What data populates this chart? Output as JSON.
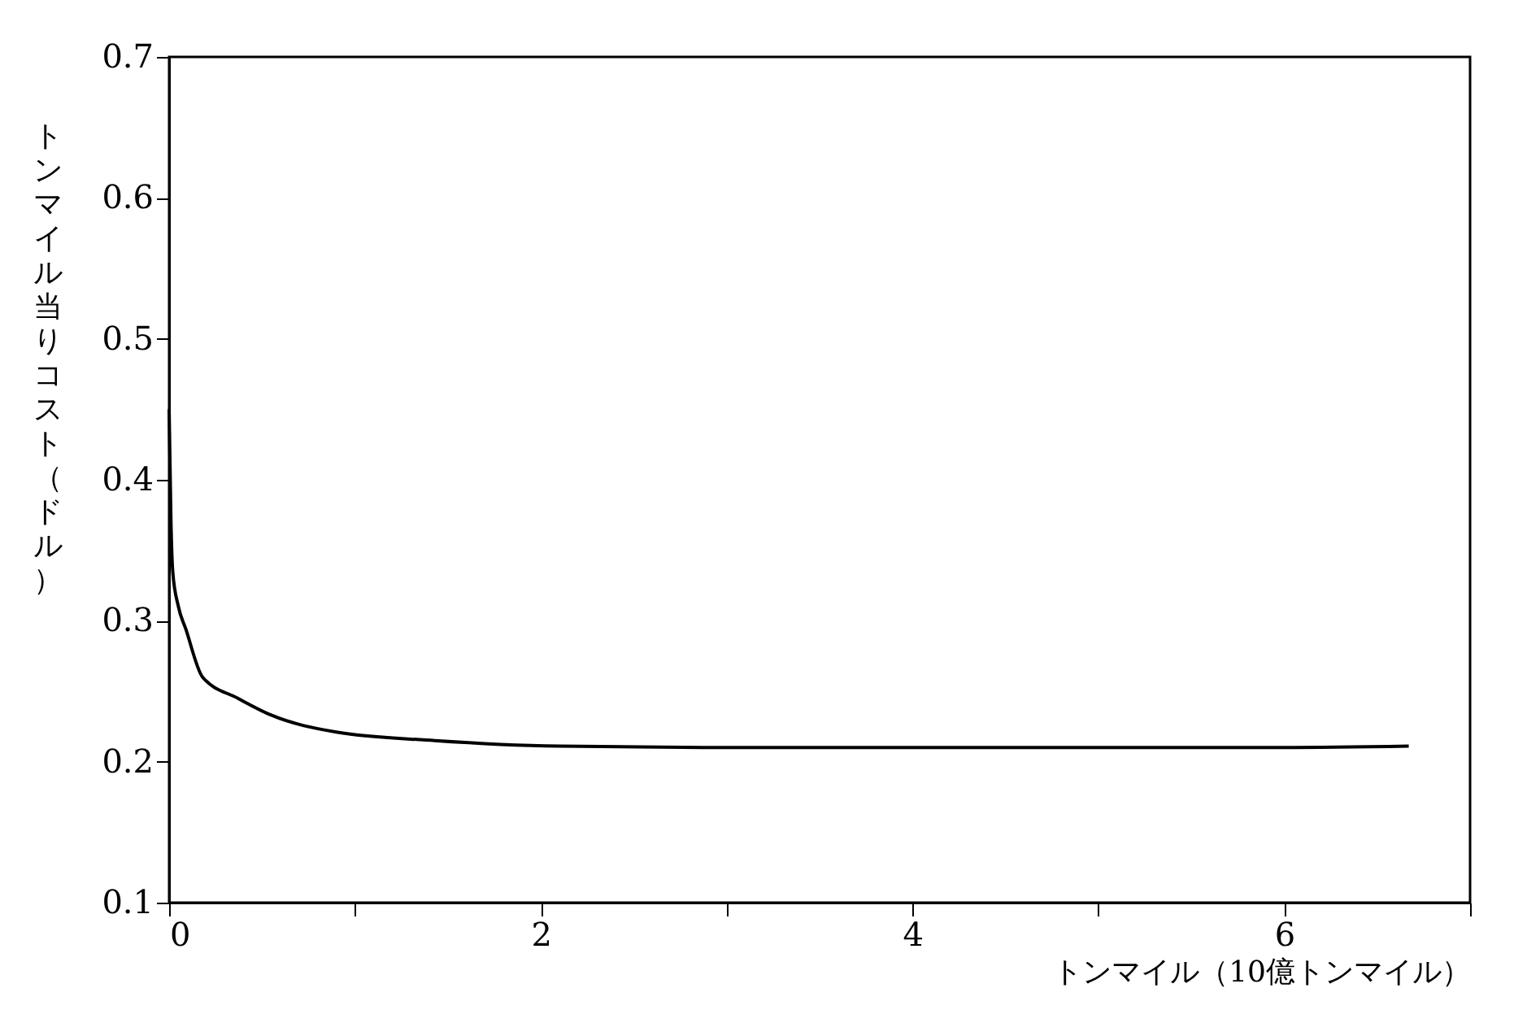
{
  "chart_data": {
    "type": "line",
    "xlabel": "トンマイル（10億トンマイル）",
    "ylabel": "トンマイル当りコスト（ドル）",
    "series": [
      {
        "color": "#000000",
        "x": [
          0,
          0.01,
          0.02,
          0.05,
          0.09,
          0.18,
          0.37,
          0.55,
          0.9,
          1.43,
          2.1,
          3,
          4,
          5,
          6,
          6.67
        ],
        "values": [
          0.45,
          0.37,
          0.334,
          0.31,
          0.294,
          0.26,
          0.245,
          0.233,
          0.221,
          0.215,
          0.211,
          0.21,
          0.21,
          0.21,
          0.21,
          0.211
        ]
      }
    ],
    "xlim": [
      0,
      7
    ],
    "xticks": [
      0,
      {
        "value": 1,
        "label": null
      },
      2,
      {
        "value": 3,
        "label": null
      },
      4,
      {
        "value": 5,
        "label": null
      },
      6,
      {
        "value": 7,
        "label": null
      }
    ],
    "ylim": [
      0.1,
      0.7
    ],
    "yticks": [
      0.1,
      0.2,
      0.3,
      0.4,
      0.5,
      0.6,
      0.7
    ],
    "grid": false,
    "marker": "none",
    "line_style": "solid"
  }
}
